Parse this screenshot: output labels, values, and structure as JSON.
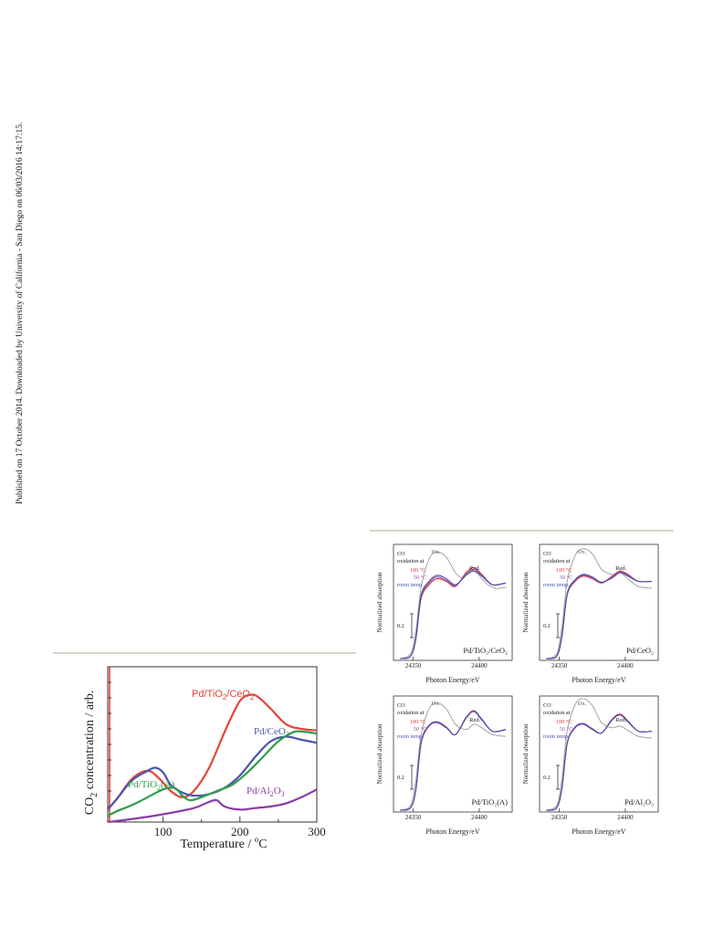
{
  "sidebar_note": "Published on 17 October 2014. Downloaded by University of California - San Diego on 06/03/2016 14:17:15.",
  "figure_left": {
    "title": "",
    "xlabel": "Temperature / °C",
    "ylabel": "CO₂ concentration / arb.",
    "x_ticks": [
      "100",
      "200",
      "300"
    ],
    "series_labels": {
      "pd_tio2_ceo2": "Pd/TiO₂/CeO₂",
      "pd_ceo2": "Pd/CeO₂",
      "pd_tio2_a": "Pd/TiO₂(A)",
      "pd_al2o3": "Pd/Al₂O₃"
    },
    "colors": {
      "pd_tio2_ceo2": "#e8413a",
      "pd_ceo2": "#4a55b0",
      "pd_tio2_a": "#2e9e48",
      "pd_al2o3": "#8c3aa6"
    }
  },
  "chart_data": [
    {
      "type": "line",
      "xlabel": "Temperature / °C",
      "ylabel": "CO₂ concentration / arb.",
      "xlim": [
        28,
        300
      ],
      "ylim": [
        0,
        100
      ],
      "grid": false,
      "series": [
        {
          "name": "Pd/TiO₂/CeO₂",
          "color": "#e8413a",
          "x": [
            28,
            40,
            60,
            80,
            95,
            110,
            125,
            140,
            160,
            180,
            200,
            215,
            225,
            240,
            260,
            280,
            300
          ],
          "y": [
            8,
            15,
            28,
            33,
            28,
            20,
            16,
            20,
            35,
            58,
            78,
            82,
            80,
            73,
            63,
            60,
            59
          ]
        },
        {
          "name": "Pd/CeO₂",
          "color": "#4a55b0",
          "x": [
            28,
            40,
            60,
            80,
            90,
            100,
            110,
            125,
            140,
            160,
            180,
            200,
            220,
            240,
            260,
            280,
            300
          ],
          "y": [
            8,
            15,
            27,
            33,
            35,
            32,
            24,
            19,
            17,
            18,
            22,
            30,
            42,
            52,
            55,
            53,
            51
          ]
        },
        {
          "name": "Pd/TiO₂(A)",
          "color": "#2e9e48",
          "x": [
            28,
            40,
            60,
            80,
            100,
            115,
            125,
            135,
            150,
            170,
            190,
            210,
            230,
            250,
            270,
            285,
            300
          ],
          "y": [
            4,
            7,
            11,
            16,
            21,
            22,
            17,
            14,
            16,
            20,
            24,
            32,
            42,
            52,
            58,
            58,
            57
          ]
        },
        {
          "name": "Pd/Al₂O₃",
          "color": "#8c3aa6",
          "x": [
            28,
            60,
            100,
            140,
            160,
            170,
            180,
            200,
            220,
            240,
            260,
            280,
            300
          ],
          "y": [
            0,
            2,
            5,
            9,
            13,
            14,
            10,
            8,
            9,
            10,
            12,
            16,
            21
          ]
        }
      ]
    },
    {
      "type": "line",
      "panel": "Pd/TiO₂/CeO₂",
      "xlabel": "Photon Energy/eV",
      "ylabel": "Normalized absorption",
      "xlim": [
        24335,
        24425
      ],
      "ylim": [
        0,
        1.35
      ],
      "series": [
        {
          "name": "Ox.",
          "color": "#9a9a9a",
          "x": [
            24340,
            24348,
            24352,
            24356,
            24362,
            24368,
            24375,
            24382,
            24388,
            24392,
            24398,
            24405,
            24412,
            24420
          ],
          "y": [
            0.02,
            0.08,
            0.35,
            0.85,
            1.18,
            1.26,
            1.2,
            1.02,
            0.96,
            1.05,
            1.02,
            0.9,
            0.84,
            0.85
          ]
        },
        {
          "name": "100 °C",
          "color": "#d03a3a",
          "x": [
            24340,
            24348,
            24352,
            24356,
            24362,
            24368,
            24375,
            24382,
            24390,
            24396,
            24402,
            24410,
            24420
          ],
          "y": [
            0.02,
            0.05,
            0.25,
            0.72,
            0.88,
            0.95,
            0.92,
            0.86,
            1.02,
            1.08,
            1.0,
            0.88,
            0.9
          ]
        },
        {
          "name": "50 °C",
          "color": "#a050a0",
          "x": [
            24340,
            24348,
            24352,
            24356,
            24362,
            24368,
            24375,
            24382,
            24390,
            24396,
            24402,
            24410,
            24420
          ],
          "y": [
            0.02,
            0.05,
            0.26,
            0.74,
            0.9,
            0.97,
            0.93,
            0.87,
            1.0,
            1.06,
            0.99,
            0.88,
            0.9
          ]
        },
        {
          "name": "room temp.",
          "color": "#4050b0",
          "x": [
            24340,
            24348,
            24352,
            24356,
            24362,
            24368,
            24375,
            24382,
            24390,
            24396,
            24402,
            24410,
            24420
          ],
          "y": [
            0.02,
            0.05,
            0.27,
            0.76,
            0.92,
            0.99,
            0.95,
            0.88,
            0.99,
            1.04,
            0.98,
            0.88,
            0.9
          ]
        }
      ]
    },
    {
      "type": "line",
      "panel": "Pd/CeO₂",
      "xlabel": "Photon Energy/eV",
      "ylabel": "Normalized absorption",
      "xlim": [
        24335,
        24425
      ],
      "ylim": [
        0,
        1.35
      ],
      "series": [
        {
          "name": "Ox.",
          "color": "#9a9a9a",
          "x": [
            24340,
            24348,
            24352,
            24356,
            24362,
            24368,
            24375,
            24382,
            24390,
            24396,
            24402,
            24410,
            24420
          ],
          "y": [
            0.02,
            0.08,
            0.4,
            0.92,
            1.22,
            1.3,
            1.24,
            1.06,
            1.0,
            1.02,
            0.95,
            0.86,
            0.84
          ]
        },
        {
          "name": "100 °C",
          "color": "#d03a3a",
          "x": [
            24340,
            24348,
            24352,
            24356,
            24362,
            24368,
            24375,
            24382,
            24390,
            24396,
            24402,
            24410,
            24420
          ],
          "y": [
            0.02,
            0.05,
            0.28,
            0.76,
            0.92,
            0.98,
            0.95,
            0.9,
            0.98,
            1.04,
            1.0,
            0.92,
            0.92
          ]
        },
        {
          "name": "50 °C",
          "color": "#a050a0",
          "x": [
            24340,
            24348,
            24352,
            24356,
            24362,
            24368,
            24375,
            24382,
            24390,
            24396,
            24402,
            24410,
            24420
          ],
          "y": [
            0.02,
            0.05,
            0.29,
            0.77,
            0.93,
            0.99,
            0.96,
            0.9,
            0.97,
            1.03,
            0.99,
            0.92,
            0.92
          ]
        },
        {
          "name": "room temp.",
          "color": "#4050b0",
          "x": [
            24340,
            24348,
            24352,
            24356,
            24362,
            24368,
            24375,
            24382,
            24390,
            24396,
            24402,
            24410,
            24420
          ],
          "y": [
            0.02,
            0.05,
            0.3,
            0.78,
            0.94,
            1.0,
            0.97,
            0.91,
            0.96,
            1.02,
            0.98,
            0.92,
            0.92
          ]
        }
      ]
    },
    {
      "type": "line",
      "panel": "Pd/TiO₂(A)",
      "xlabel": "Photon Energy/eV",
      "ylabel": "Normalized absorption",
      "xlim": [
        24335,
        24425
      ],
      "ylim": [
        0,
        1.35
      ],
      "series": [
        {
          "name": "Ox.",
          "color": "#9a9a9a",
          "x": [
            24340,
            24348,
            24352,
            24356,
            24362,
            24368,
            24375,
            24382,
            24390,
            24396,
            24402,
            24410,
            24420
          ],
          "y": [
            0.02,
            0.08,
            0.38,
            0.9,
            1.2,
            1.27,
            1.2,
            1.02,
            0.96,
            1.02,
            0.98,
            0.9,
            0.88
          ]
        },
        {
          "name": "100 °C",
          "color": "#d03a3a",
          "x": [
            24340,
            24348,
            24352,
            24356,
            24362,
            24368,
            24375,
            24382,
            24390,
            24396,
            24402,
            24410,
            24420
          ],
          "y": [
            0.02,
            0.05,
            0.26,
            0.8,
            1.0,
            1.04,
            0.98,
            0.9,
            1.1,
            1.18,
            1.08,
            0.94,
            0.96
          ]
        },
        {
          "name": "50 °C",
          "color": "#a050a0",
          "x": [
            24340,
            24348,
            24352,
            24356,
            24362,
            24368,
            24375,
            24382,
            24390,
            24396,
            24402,
            24410,
            24420
          ],
          "y": [
            0.02,
            0.05,
            0.27,
            0.81,
            1.0,
            1.04,
            0.98,
            0.9,
            1.1,
            1.17,
            1.08,
            0.94,
            0.96
          ]
        },
        {
          "name": "room temp.",
          "color": "#4050b0",
          "x": [
            24340,
            24348,
            24352,
            24356,
            24362,
            24368,
            24375,
            24382,
            24390,
            24396,
            24402,
            24410,
            24420
          ],
          "y": [
            0.02,
            0.05,
            0.27,
            0.82,
            1.01,
            1.05,
            0.99,
            0.9,
            1.09,
            1.17,
            1.07,
            0.94,
            0.96
          ]
        }
      ]
    },
    {
      "type": "line",
      "panel": "Pd/Al₂O₃",
      "xlabel": "Photon Energy/eV",
      "ylabel": "Normalized absorption",
      "xlim": [
        24335,
        24425
      ],
      "ylim": [
        0,
        1.35
      ],
      "series": [
        {
          "name": "Ox.",
          "color": "#9a9a9a",
          "x": [
            24340,
            24348,
            24352,
            24356,
            24362,
            24368,
            24375,
            24382,
            24390,
            24396,
            24402,
            24410,
            24420
          ],
          "y": [
            0.02,
            0.08,
            0.4,
            0.95,
            1.25,
            1.32,
            1.24,
            1.04,
            0.98,
            1.0,
            0.95,
            0.88,
            0.86
          ]
        },
        {
          "name": "100 °C",
          "color": "#d03a3a",
          "x": [
            24340,
            24348,
            24352,
            24356,
            24362,
            24368,
            24375,
            24382,
            24390,
            24396,
            24402,
            24410,
            24420
          ],
          "y": [
            0.02,
            0.05,
            0.28,
            0.8,
            0.98,
            1.02,
            0.96,
            0.92,
            1.08,
            1.14,
            1.06,
            0.94,
            0.94
          ]
        },
        {
          "name": "50 °C",
          "color": "#a050a0",
          "x": [
            24340,
            24348,
            24352,
            24356,
            24362,
            24368,
            24375,
            24382,
            24390,
            24396,
            24402,
            24410,
            24420
          ],
          "y": [
            0.02,
            0.05,
            0.28,
            0.8,
            0.98,
            1.02,
            0.96,
            0.92,
            1.07,
            1.13,
            1.05,
            0.94,
            0.94
          ]
        },
        {
          "name": "room temp.",
          "color": "#4050b0",
          "x": [
            24340,
            24348,
            24352,
            24356,
            24362,
            24368,
            24375,
            24382,
            24390,
            24396,
            24402,
            24410,
            24420
          ],
          "y": [
            0.02,
            0.05,
            0.29,
            0.81,
            0.99,
            1.03,
            0.97,
            0.92,
            1.07,
            1.13,
            1.05,
            0.94,
            0.94
          ]
        }
      ]
    }
  ],
  "xanes": {
    "legend_head_1": "CO",
    "legend_head_2": "oxidation at",
    "legend_100": "100 °C",
    "legend_50": "50 °C",
    "legend_rt": "room temp.",
    "ox_label": "Ox.",
    "red_label": "Red.",
    "scale_label": "0.2",
    "tick_left": "24350",
    "tick_right": "24400",
    "xlabel": "Photon Energy/eV",
    "ylabel": "Normalized absorption",
    "legend_colors": {
      "t100": "#d03a3a",
      "t50": "#a050a0",
      "rt": "#4050b0"
    },
    "panels": [
      {
        "label": "Pd/TiO₂/CeO₂"
      },
      {
        "label": "Pd/CeO₂"
      },
      {
        "label": "Pd/TiO₂(A)"
      },
      {
        "label": "Pd/Al₂O₃"
      }
    ]
  }
}
